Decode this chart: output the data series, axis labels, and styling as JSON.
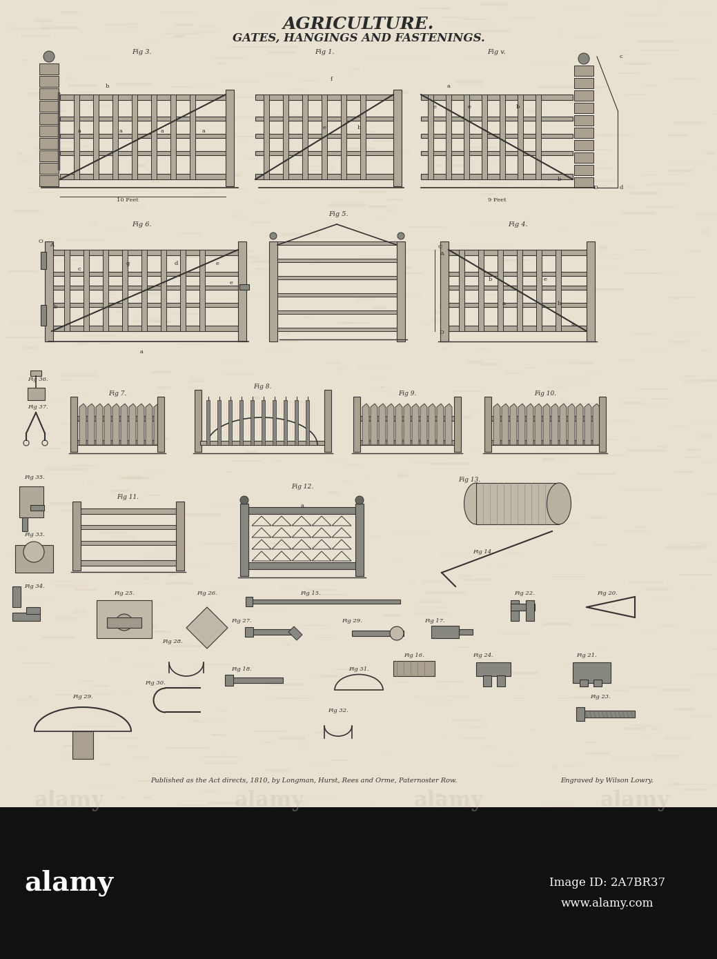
{
  "title": "AGRICULTURE.",
  "subtitle": "GATES, HANGINGS AND FASTENINGS.",
  "bg_color": "#e8e0d0",
  "text_color": "#2a2a2a",
  "publisher_text": "Published as the Act directs, 1810, by Longman, Hurst, Rees and Orme, Paternoster Row.",
  "engraver_text": "Engraved by Wilson Lowry.",
  "watermark_color": "#c8bfb0",
  "title_fontsize": 18,
  "subtitle_fontsize": 12,
  "footer_fontsize": 7,
  "fig_width": 10.39,
  "fig_height": 13.9,
  "dpi": 100,
  "line_color": "#333333",
  "light_line": "#555555",
  "fill_color": "#d0c8b8",
  "wood_color": "#888888",
  "dark_color": "#222222"
}
